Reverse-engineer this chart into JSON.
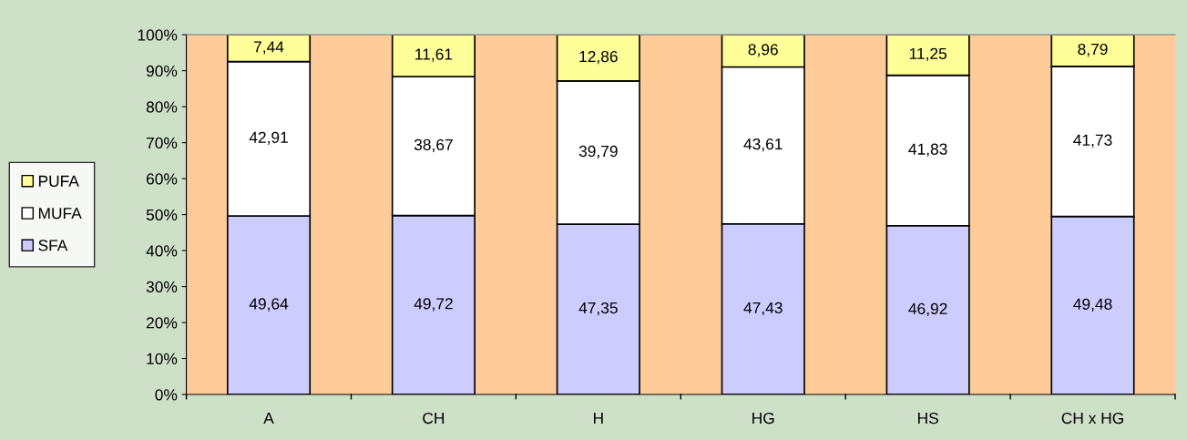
{
  "chart_data": {
    "type": "bar",
    "stacked": true,
    "categories": [
      "A",
      "CH",
      "H",
      "HG",
      "HS",
      "CH x HG"
    ],
    "series": [
      {
        "name": "SFA",
        "color": "#ccccff",
        "values": [
          49.64,
          49.72,
          47.35,
          47.43,
          46.92,
          49.48
        ],
        "value_labels": [
          "49,64",
          "49,72",
          "47,35",
          "47,43",
          "46,92",
          "49,48"
        ]
      },
      {
        "name": "MUFA",
        "color": "#ffffff",
        "values": [
          42.91,
          38.67,
          39.79,
          43.61,
          41.83,
          41.73
        ],
        "value_labels": [
          "42,91",
          "38,67",
          "39,79",
          "43,61",
          "41,83",
          "41,73"
        ]
      },
      {
        "name": "PUFA",
        "color": "#ffff99",
        "values": [
          7.44,
          11.61,
          12.86,
          8.96,
          11.25,
          8.79
        ],
        "value_labels": [
          "7,44",
          "11,61",
          "12,86",
          "8,96",
          "11,25",
          "8,79"
        ]
      }
    ],
    "ylim": [
      0,
      100
    ],
    "yticks": [
      {
        "value": 0,
        "label": "0%"
      },
      {
        "value": 10,
        "label": "10%"
      },
      {
        "value": 20,
        "label": "20%"
      },
      {
        "value": 30,
        "label": "30%"
      },
      {
        "value": 40,
        "label": "40%"
      },
      {
        "value": 50,
        "label": "50%"
      },
      {
        "value": 60,
        "label": "60%"
      },
      {
        "value": 70,
        "label": "70%"
      },
      {
        "value": 80,
        "label": "80%"
      },
      {
        "value": 90,
        "label": "90%"
      },
      {
        "value": 100,
        "label": "100%"
      }
    ],
    "grid": false,
    "legend": "left"
  }
}
